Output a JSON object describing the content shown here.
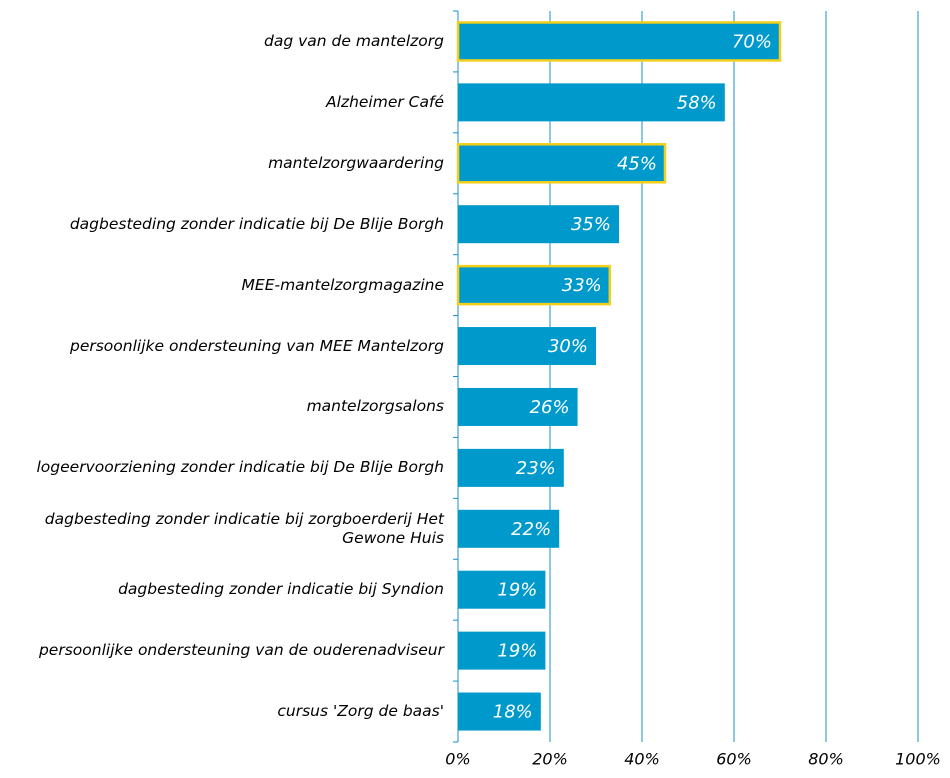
{
  "chart_data": {
    "type": "barh",
    "categories": [
      "dag van de mantelzorg",
      "Alzheimer Café",
      "mantelzorgwaardering",
      "dagbesteding zonder indicatie bij De Blije Borgh",
      "MEE-mantelzorgmagazine",
      "persoonlijke ondersteuning van MEE Mantelzorg",
      "mantelzorgsalons",
      "logeervoorziening zonder indicatie bij De Blije Borgh",
      "dagbesteding zonder indicatie bij zorgboerderij Het Gewone Huis",
      "dagbesteding zonder indicatie bij Syndion",
      "persoonlijke ondersteuning van de ouderenadviseur",
      "cursus 'Zorg de baas'"
    ],
    "values": [
      70,
      58,
      45,
      35,
      33,
      30,
      26,
      23,
      22,
      19,
      19,
      18
    ],
    "value_labels": [
      "70%",
      "58%",
      "45%",
      "35%",
      "33%",
      "30%",
      "26%",
      "23%",
      "22%",
      "19%",
      "19%",
      "18%"
    ],
    "color": "#0099cc",
    "highlighted": [
      true,
      false,
      true,
      false,
      true,
      false,
      false,
      false,
      false,
      false,
      false,
      false
    ],
    "highlight_color": "#f2cf1a",
    "xlim": [
      0,
      100
    ],
    "xticks": [
      {
        "value": 0,
        "label": "0%"
      },
      {
        "value": 20,
        "label": "20%"
      },
      {
        "value": 40,
        "label": "40%"
      },
      {
        "value": 60,
        "label": "60%"
      },
      {
        "value": 80,
        "label": "80%"
      },
      {
        "value": 100,
        "label": "100%"
      }
    ],
    "grid": true
  }
}
